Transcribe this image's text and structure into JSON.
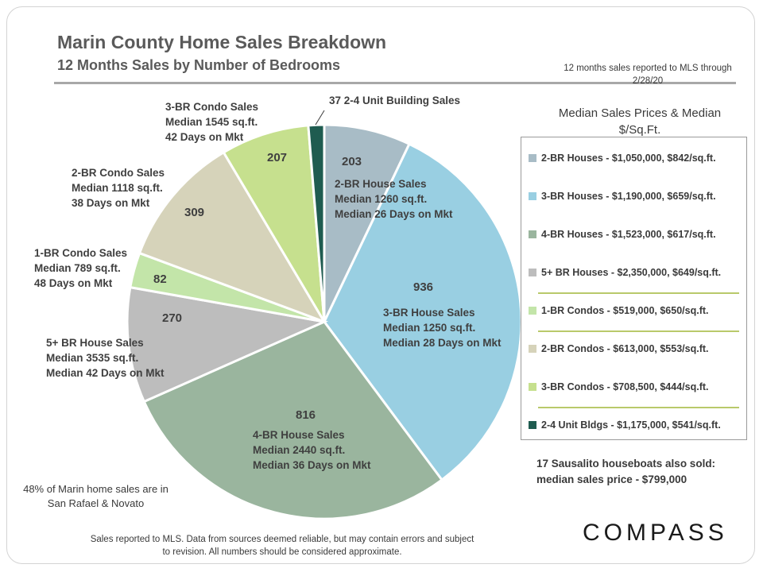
{
  "title": "Marin County Home Sales Breakdown",
  "subtitle": "12 Months Sales by Number of Bedrooms",
  "report_note": "12 months sales reported to MLS through 2/28/20",
  "legend": {
    "title": "Median Sales Prices & Median $/Sq.Ft.",
    "items": [
      {
        "label": "2-BR Houses - $1,050,000, $842/sq.ft.",
        "color": "#a8bcc6"
      },
      {
        "label": "3-BR Houses - $1,190,000, $659/sq.ft.",
        "color": "#99cfe2"
      },
      {
        "label": "4-BR Houses - $1,523,000, $617/sq.ft.",
        "color": "#9ab59e"
      },
      {
        "label": "5+ BR Houses - $2,350,000, $649/sq.ft.",
        "color": "#bdbdbd"
      },
      {
        "label": "1-BR Condos - $519,000, $650/sq.ft.",
        "color": "#c3e5a9"
      },
      {
        "label": "2-BR Condos - $613,000, $553/sq.ft.",
        "color": "#d6d3ba"
      },
      {
        "label": "3-BR Condos - $708,500, $444/sq.ft.",
        "color": "#c6e08e"
      },
      {
        "label": "2-4 Unit Bldgs - $1,175,000, $541/sq.ft.",
        "color": "#1f5c50"
      }
    ]
  },
  "houseboat_note": [
    "17 Sausalito houseboats also sold:",
    "median sales price - $799,000"
  ],
  "marin_note": "48% of Marin home sales are in San Rafael & Novato",
  "disclaimer": "Sales reported to MLS. Data from sources deemed reliable, but may contain errors and subject to revision. All numbers should be considered approximate.",
  "logo": "COMPASS",
  "chart_data": {
    "type": "pie",
    "title": "Marin County Home Sales Breakdown",
    "subtitle": "12 Months Sales by Number of Bedrooms",
    "start_angle_deg": 0,
    "direction": "clockwise",
    "slices": [
      {
        "name": "2-BR House Sales",
        "value": 203,
        "color": "#a8bcc6",
        "label_lines": [
          "2-BR House Sales",
          "Median 1260 sq.ft.",
          "Median 26 Days on Mkt"
        ]
      },
      {
        "name": "3-BR House Sales",
        "value": 936,
        "color": "#99cfe2",
        "label_lines": [
          "3-BR House Sales",
          "Median 1250 sq.ft.",
          "Median 28 Days on Mkt"
        ]
      },
      {
        "name": "4-BR House Sales",
        "value": 816,
        "color": "#9ab59e",
        "label_lines": [
          "4-BR House Sales",
          "Median 2440 sq.ft.",
          "Median 36 Days on Mkt"
        ]
      },
      {
        "name": "5+ BR House Sales",
        "value": 270,
        "color": "#bdbdbd",
        "label_lines": [
          "5+ BR House Sales",
          "Median 3535 sq.ft.",
          "Median 42 Days on Mkt"
        ]
      },
      {
        "name": "1-BR Condo Sales",
        "value": 82,
        "color": "#c3e5a9",
        "label_lines": [
          "1-BR Condo Sales",
          "Median 789 sq.ft.",
          "48 Days on Mkt"
        ]
      },
      {
        "name": "2-BR Condo Sales",
        "value": 309,
        "color": "#d6d3ba",
        "label_lines": [
          "2-BR Condo Sales",
          "Median 1118 sq.ft.",
          "38 Days on Mkt"
        ]
      },
      {
        "name": "3-BR Condo Sales",
        "value": 207,
        "color": "#c6e08e",
        "label_lines": [
          "3-BR Condo Sales",
          "Median 1545 sq.ft.",
          "42 Days on Mkt"
        ]
      },
      {
        "name": "2-4 Unit Building Sales",
        "value": 37,
        "color": "#1f5c50",
        "label_lines": [
          "37 2-4 Unit Building Sales"
        ],
        "show_count": false
      }
    ]
  }
}
